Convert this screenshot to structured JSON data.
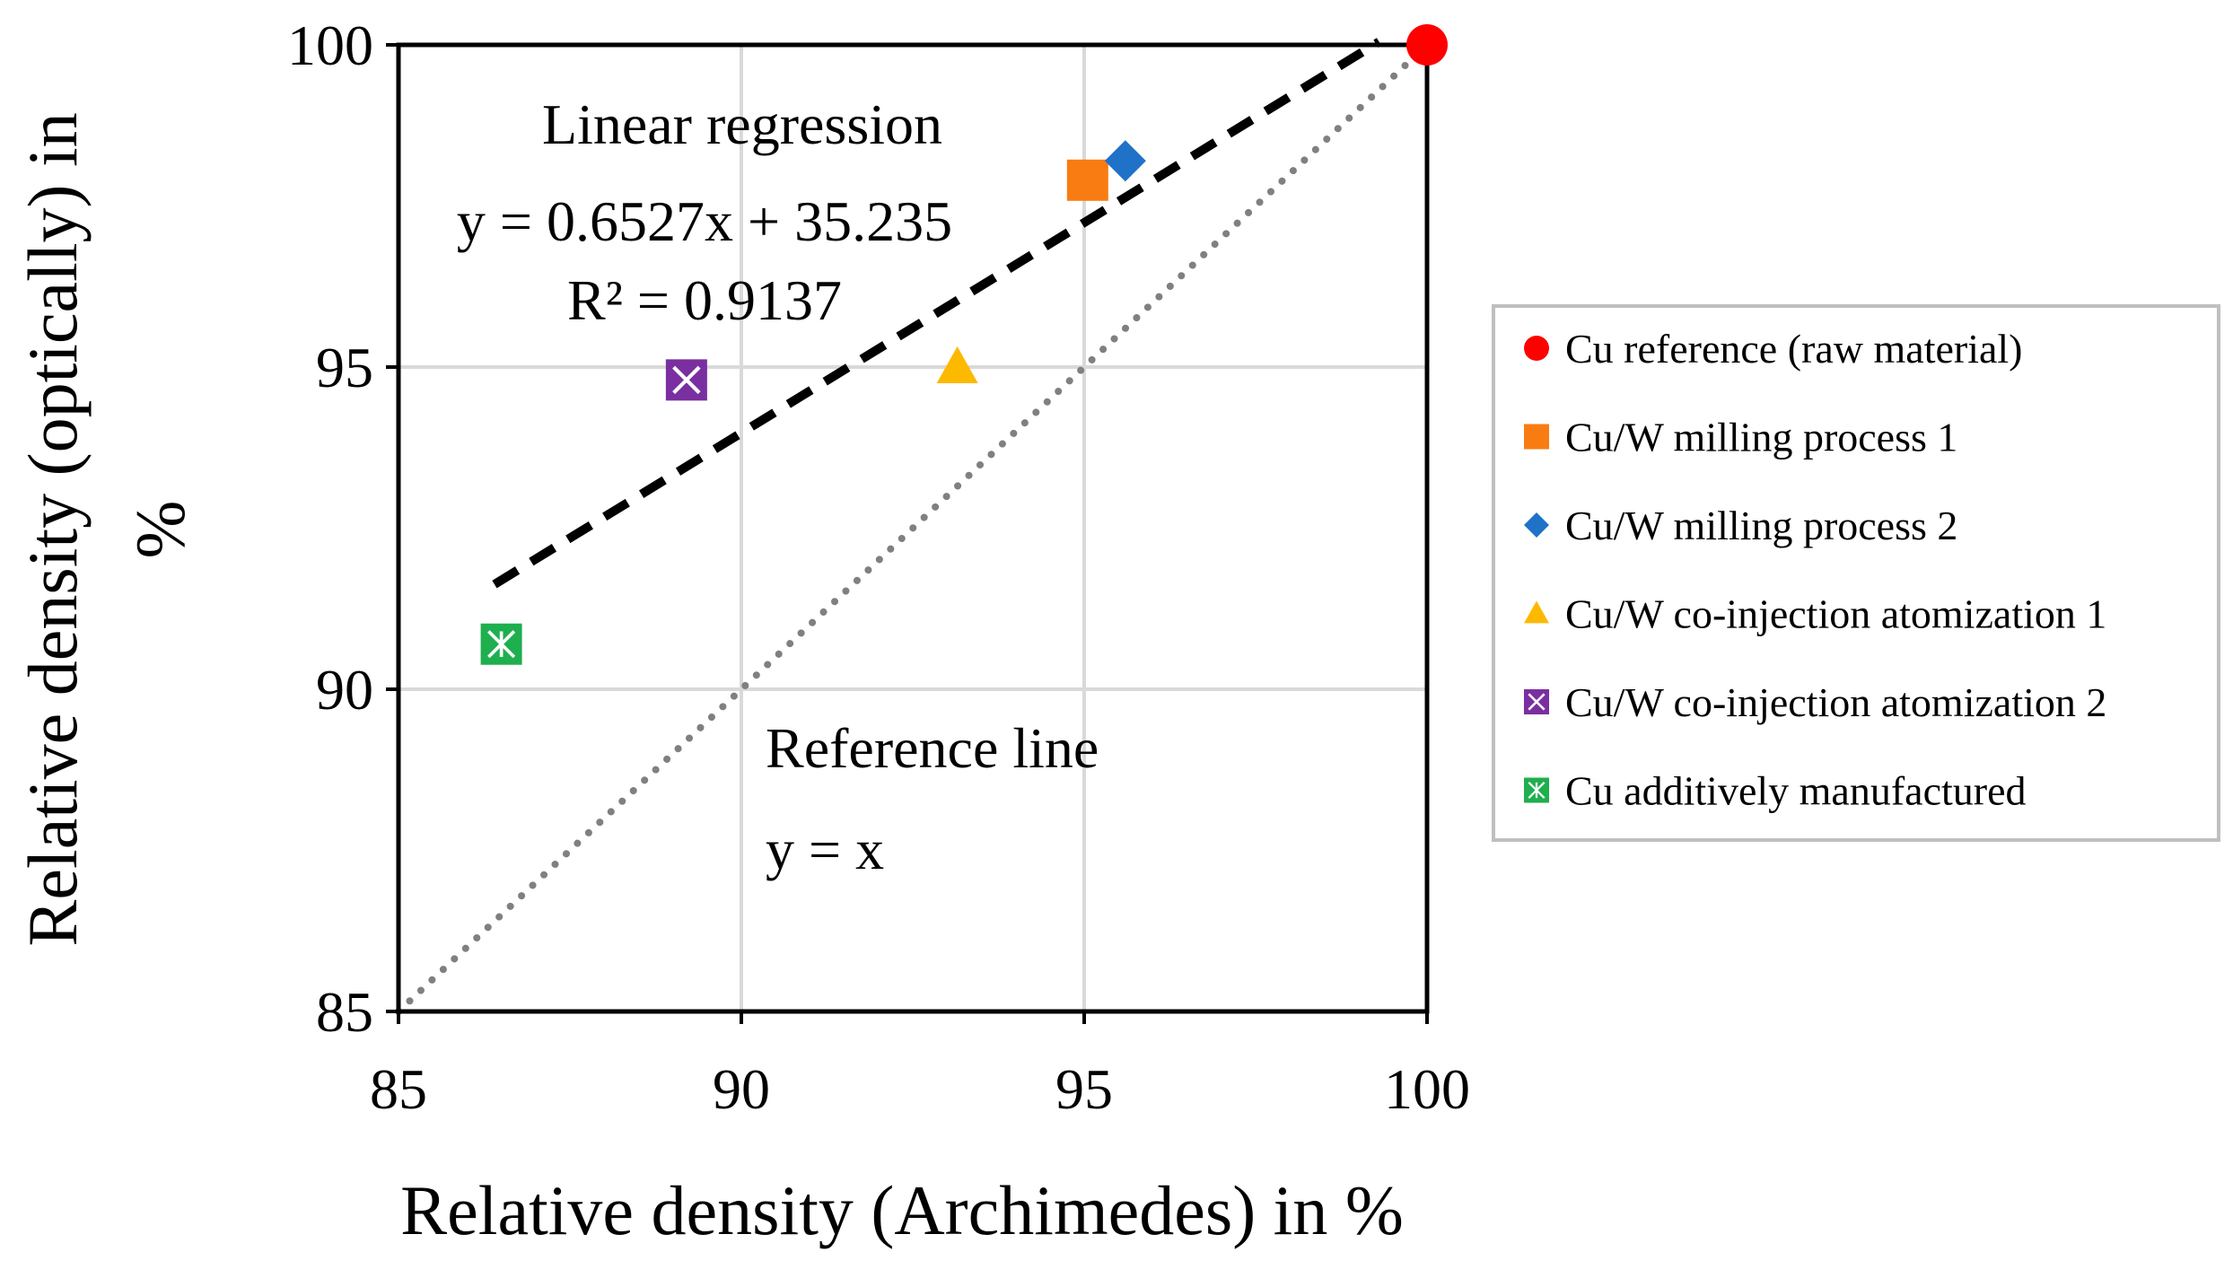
{
  "chart_data": {
    "type": "scatter",
    "xlabel": "Relative density (Archimedes) in %",
    "ylabel_lines": [
      "Relative density (optically) in",
      "%"
    ],
    "xlim": [
      85,
      100
    ],
    "ylim": [
      85,
      100
    ],
    "xticks": [
      85,
      90,
      95,
      100
    ],
    "yticks": [
      85,
      90,
      95,
      100
    ],
    "grid": true,
    "legend_position": "right",
    "series": [
      {
        "name": "Cu reference (raw material)",
        "marker": "circle",
        "color": "#ff0000",
        "x": 100.0,
        "y": 100.0
      },
      {
        "name": "Cu/W milling process 1",
        "marker": "square",
        "color": "#f97c12",
        "x": 95.05,
        "y": 97.9
      },
      {
        "name": "Cu/W milling process 2",
        "marker": "diamond",
        "color": "#1f72c8",
        "x": 95.6,
        "y": 98.2
      },
      {
        "name": "Cu/W co-injection atomization 1",
        "marker": "triangle",
        "color": "#fdb900",
        "x": 93.15,
        "y": 95.0
      },
      {
        "name": "Cu/W co-injection atomization 2",
        "marker": "xbox",
        "color": "#7a2fa0",
        "x": 89.2,
        "y": 94.8
      },
      {
        "name": "Cu additively manufactured",
        "marker": "asterbox",
        "color": "#1eaf4e",
        "x": 86.5,
        "y": 90.7
      }
    ],
    "regression": {
      "slope": 0.6527,
      "intercept": 35.235,
      "x_from": 86.4,
      "x_to": 99.3,
      "color": "#000000",
      "labels": [
        "Linear regression",
        "y = 0.6527x + 35.235",
        "R² = 0.9137"
      ]
    },
    "reference_line": {
      "x_from": 85,
      "x_to": 100,
      "color": "#808080",
      "labels": [
        "Reference line",
        "y = x"
      ]
    }
  }
}
